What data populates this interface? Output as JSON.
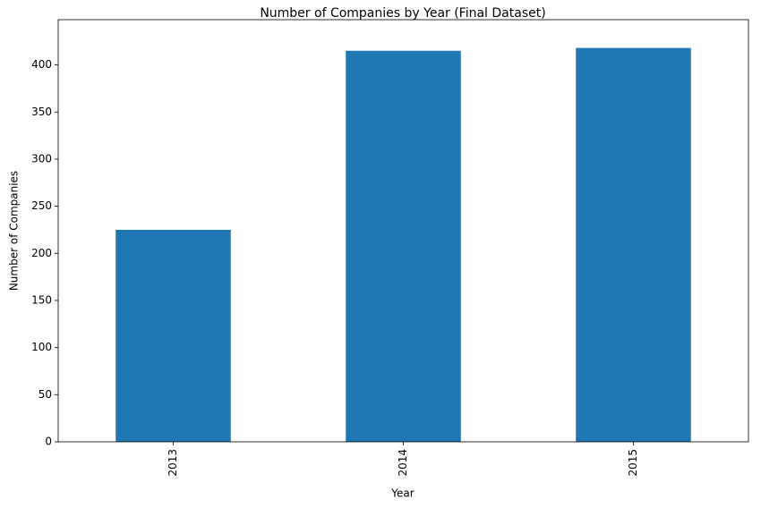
{
  "chart_data": {
    "type": "bar",
    "title": "Number of Companies by Year (Final Dataset)",
    "x_label": "Year",
    "y_label": "Number of Companies",
    "categories": [
      "2013",
      "2014",
      "2015"
    ],
    "values": [
      225,
      415,
      418
    ],
    "color": "#1f77b4",
    "ylim": [
      0,
      448
    ],
    "yticks": [
      0,
      50,
      100,
      150,
      200,
      250,
      300,
      350,
      400
    ],
    "grid": false
  }
}
